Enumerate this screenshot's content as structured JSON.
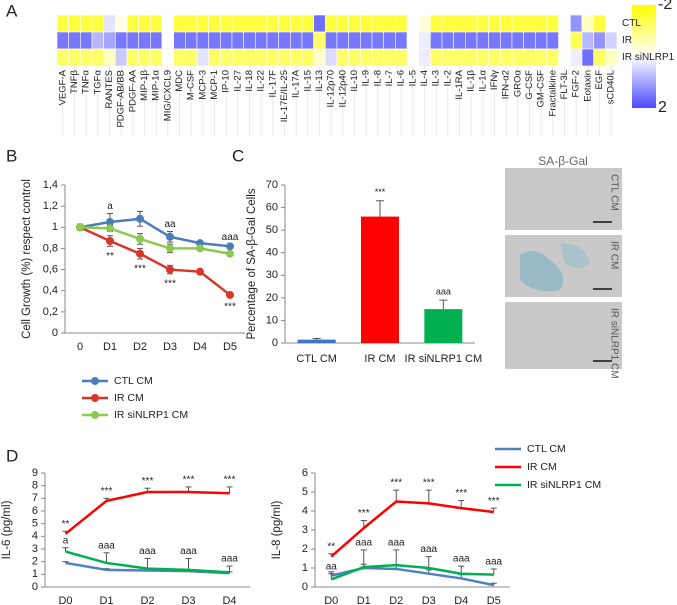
{
  "chart_data": [
    {
      "type": "heatmap",
      "panel": "A",
      "rows": [
        "CTL",
        "IR",
        "IR siNLRP1"
      ],
      "columns": [
        "VEGF-A",
        "TNFβ",
        "TNFα",
        "TGFα",
        "RANTES",
        "PDGF-AB/BB",
        "PDGF-AA",
        "MIP-1β",
        "MIP-1α",
        "MIG/CXCL9",
        "MDC",
        "M-CSF",
        "MCP-3",
        "MCP-1",
        "IP-10",
        "IL-27",
        "IL-18",
        "IL-22",
        "IL-17F",
        "IL-17E/IL-25",
        "IL-17A",
        "IL-15",
        "IL-13",
        "IL-12p70",
        "IL-12p40",
        "IL-10",
        "IL-9",
        "IL-8",
        "IL-7",
        "IL-6",
        "IL-5",
        "IL-4",
        "IL-3",
        "IL-2",
        "IL-1RA",
        "IL-1β",
        "IL-1α",
        "IFNγ",
        "IFN-α2",
        "GROα",
        "G-CSF",
        "GM-CSF",
        "Fractalkine",
        "FLT-3L",
        "FGF-2",
        "Eotaxin",
        "EGF",
        "sCD40L"
      ],
      "values": [
        [
          -1.5,
          -1.5,
          -1.5,
          -1.5,
          0.3,
          -0.2,
          -1.5,
          -1.5,
          -1.5,
          0,
          -1.5,
          -1.5,
          -1.5,
          -1.5,
          -1.5,
          -1.5,
          -1.5,
          -1.5,
          -1.5,
          -1.5,
          -1.5,
          -1.5,
          1.6,
          -1.5,
          -1.5,
          -1.5,
          -1.5,
          -1.5,
          -1.5,
          -1.5,
          null,
          -0.3,
          -1.5,
          -1.5,
          -1.5,
          -1.5,
          -1.5,
          -1.5,
          -1.5,
          -1.5,
          -1.5,
          -1.5,
          -1.5,
          0,
          1.2,
          -0.5,
          -1.5,
          0
        ],
        [
          1.5,
          1.5,
          1.5,
          0.8,
          1.0,
          1.5,
          1.5,
          1.5,
          1.5,
          0,
          1.5,
          1.5,
          1.5,
          1.5,
          1.5,
          1.5,
          1.5,
          1.5,
          1.5,
          1.5,
          1.5,
          1.5,
          -1.2,
          1.5,
          1.5,
          1.5,
          1.5,
          1.5,
          1.5,
          1.5,
          null,
          0.2,
          1.5,
          1.5,
          1.5,
          1.5,
          1.5,
          1.5,
          1.5,
          1.5,
          1.5,
          1.5,
          1.5,
          0,
          -1.4,
          0.8,
          1.2,
          0.5
        ],
        [
          -1.2,
          -1.2,
          -1.2,
          -1.2,
          -0.5,
          0.6,
          -1.2,
          -1.2,
          -1.2,
          0,
          -1.2,
          -1.2,
          0.3,
          -1.2,
          -1.2,
          -1.2,
          -1.2,
          -1.2,
          -1.2,
          -1.2,
          -1.2,
          -1.2,
          -0.4,
          0.4,
          -1.2,
          -1.2,
          -1.2,
          -1.2,
          -1.2,
          -1.2,
          null,
          0.2,
          -1.2,
          -1.2,
          -1.2,
          -1.2,
          -1.2,
          -1.2,
          -1.2,
          -1.2,
          -1.2,
          -1.2,
          -1.2,
          0,
          0.2,
          1.6,
          -1.2,
          -0.5
        ]
      ],
      "colorbar": {
        "colors": [
          "#ffff00",
          "#ffffff",
          "#4b4bff"
        ],
        "zlim": [
          -2,
          2
        ],
        "ticks": [
          -2,
          2
        ]
      }
    },
    {
      "type": "line",
      "panel": "B",
      "ylabel": "Cell Growth (%) respect control",
      "categories": [
        "0",
        "D1",
        "D2",
        "D3",
        "D4",
        "D5"
      ],
      "ylim": [
        0,
        1.4
      ],
      "yticks": [
        0,
        {
          "value": 0.2,
          "label": "0,2"
        },
        {
          "value": 0.4,
          "label": "0,4"
        },
        {
          "value": 0.6,
          "label": "0,6"
        },
        {
          "value": 0.8,
          "label": "0,8"
        },
        1,
        {
          "value": 1.2,
          "label": "1,2"
        },
        {
          "value": 1.4,
          "label": "1,4"
        }
      ],
      "markers": true,
      "error_bars": "both",
      "legend": true,
      "series": [
        {
          "name": "CTL CM",
          "color": "#4a7ebb",
          "values": [
            1,
            1.05,
            1.08,
            0.91,
            0.85,
            0.82
          ],
          "errors": [
            0.03,
            0.08,
            0.07,
            0.05,
            0.02,
            0.02
          ],
          "notes": [
            null,
            "a",
            null,
            "aa",
            null,
            "aaa"
          ]
        },
        {
          "name": "IR CM",
          "color": "#d9352a",
          "values": [
            1,
            0.87,
            0.75,
            0.6,
            0.58,
            0.36
          ],
          "errors": [
            0.02,
            0.05,
            0.05,
            0.04,
            0.01,
            0.02
          ],
          "notes": [
            null,
            "**",
            "***",
            "***",
            null,
            "***"
          ],
          "notes_side": "below"
        },
        {
          "name": "IR siNLRP1 CM",
          "color": "#8cc94f",
          "values": [
            1,
            0.99,
            0.89,
            0.8,
            0.8,
            0.75
          ],
          "errors": [
            0.02,
            0.03,
            0.05,
            0.04,
            0.02,
            0.02
          ]
        }
      ]
    },
    {
      "type": "bar",
      "panel": "C",
      "ylabel": "Percentage of SA-β-Gal Cells",
      "categories": [
        "CTL CM",
        "IR CM",
        "IR siNLRP1 CM"
      ],
      "values": [
        1.5,
        56,
        15
      ],
      "errors": [
        0.5,
        7,
        4
      ],
      "notes": [
        null,
        "***",
        "aaa"
      ],
      "colors": [
        "#4472c4",
        "#ff0000",
        "#00b050"
      ],
      "ylim": [
        0,
        70
      ],
      "yticks": [
        0,
        10,
        20,
        30,
        40,
        50,
        60,
        70
      ]
    },
    {
      "type": "line",
      "panel": "D",
      "ylabel": "IL-6 (pg/ml)",
      "categories": [
        "D0",
        "D1",
        "D2",
        "D3",
        "D4"
      ],
      "ylim": [
        0,
        9
      ],
      "yticks": [
        0,
        1,
        2,
        3,
        4,
        5,
        6,
        7,
        8,
        9
      ],
      "markers": false,
      "error_bars": "up",
      "legend": false,
      "series": [
        {
          "name": "CTL CM",
          "color": "#4f81bd",
          "values": [
            1.9,
            1.35,
            1.3,
            1.25,
            1.1
          ],
          "errors": [
            0.1,
            0.1,
            0.1,
            0.1,
            0.1
          ]
        },
        {
          "name": "IR CM",
          "color": "#ff0000",
          "values": [
            4.2,
            6.8,
            7.5,
            7.5,
            7.4
          ],
          "errors": [
            0.2,
            0.2,
            0.3,
            0.4,
            0.5
          ],
          "notes": [
            "**",
            "***",
            "***",
            "***",
            "***"
          ]
        },
        {
          "name": "IR siNLRP1 CM",
          "color": "#00b050",
          "values": [
            2.8,
            1.9,
            1.45,
            1.35,
            1.15
          ],
          "errors": [
            0.3,
            0.8,
            0.8,
            0.9,
            0.5
          ],
          "notes": [
            "a",
            "aaa",
            "aaa",
            "aaa",
            "aaa"
          ]
        }
      ]
    },
    {
      "type": "line",
      "ylabel": "IL-8 (pg/ml)",
      "categories": [
        "D0",
        "D1",
        "D2",
        "D3",
        "D4",
        "D5"
      ],
      "ylim": [
        0,
        6
      ],
      "yticks": [
        0,
        1,
        2,
        3,
        4,
        5,
        6
      ],
      "markers": false,
      "error_bars": "up",
      "legend": true,
      "series": [
        {
          "name": "CTL CM",
          "color": "#4f81bd",
          "values": [
            0.6,
            1.0,
            0.95,
            0.7,
            0.45,
            0.1
          ],
          "errors": [
            0.2,
            0.2,
            0.2,
            0.2,
            0.2,
            0.1
          ]
        },
        {
          "name": "IR CM",
          "color": "#ff0000",
          "values": [
            1.6,
            3.1,
            4.5,
            4.4,
            4.15,
            3.95
          ],
          "errors": [
            0.15,
            0.4,
            0.6,
            0.7,
            0.4,
            0.2
          ],
          "notes": [
            "**",
            "***",
            "***",
            "***",
            "***",
            "***"
          ]
        },
        {
          "name": "IR siNLRP1 CM",
          "color": "#00b050",
          "values": [
            0.4,
            1.05,
            1.15,
            1.0,
            0.7,
            0.65
          ],
          "errors": [
            0.3,
            0.9,
            0.8,
            0.6,
            0.4,
            0.3
          ],
          "notes": [
            "aa",
            "aaa",
            "aaa",
            "aaa",
            "aaa",
            "aaa"
          ]
        }
      ]
    }
  ],
  "micrographs": {
    "title": "SA-β-Gal",
    "labels": [
      "CTL CM",
      "IR CM",
      "IR siNLRP1 CM"
    ]
  }
}
